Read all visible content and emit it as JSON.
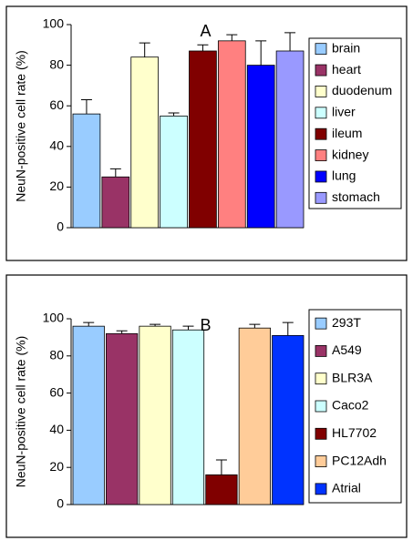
{
  "chart_data": [
    {
      "type": "bar",
      "annotation": "A",
      "ylabel": "NeuN-positive cell rate (%)",
      "categories": [
        "brain",
        "heart",
        "duodenum",
        "liver",
        "ileum",
        "kidney",
        "lung",
        "stomach"
      ],
      "values": [
        56,
        25,
        84,
        55,
        87,
        92,
        80,
        87
      ],
      "errors": [
        7,
        4,
        7,
        1.5,
        3,
        3,
        12,
        9
      ],
      "colors": [
        "#99ccff",
        "#993366",
        "#ffffcc",
        "#ccffff",
        "#800000",
        "#ff8080",
        "#0000ff",
        "#9999ff"
      ],
      "ylim": [
        0,
        100
      ],
      "yticks": [
        0,
        20,
        40,
        60,
        80,
        100
      ]
    },
    {
      "type": "bar",
      "annotation": "B",
      "ylabel": "NeuN-positive cell rate (%)",
      "categories": [
        "293T",
        "A549",
        "BLR3A",
        "Caco2",
        "HL7702",
        "PC12Adh",
        "Atrial"
      ],
      "values": [
        96,
        92,
        96,
        94,
        16,
        95,
        91
      ],
      "errors": [
        2,
        1.5,
        1,
        2,
        8,
        2,
        7
      ],
      "colors": [
        "#99ccff",
        "#993366",
        "#ffffcc",
        "#ccffff",
        "#800000",
        "#ffcc99",
        "#0033ff"
      ],
      "ylim": [
        0,
        100
      ],
      "yticks": [
        0,
        20,
        40,
        60,
        80,
        100
      ]
    }
  ]
}
